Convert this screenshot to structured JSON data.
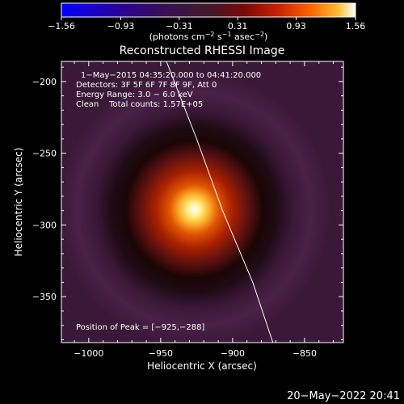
{
  "chart_data": {
    "type": "heatmap",
    "title": "Reconstructed RHESSI Image",
    "xlabel": "Heliocentric X (arcsec)",
    "ylabel": "Heliocentric Y (arcsec)",
    "xlim": [
      -1019,
      -823
    ],
    "ylim": [
      -382,
      -186
    ],
    "xticks": [
      -1000,
      -950,
      -900,
      -850
    ],
    "yticks": [
      -200,
      -250,
      -300,
      -350
    ],
    "xtick_labels": [
      "−1000",
      "−950",
      "−900",
      "−850"
    ],
    "ytick_labels": [
      "−200",
      "−250",
      "−300",
      "−350"
    ],
    "colorbar": {
      "min": -1.56,
      "max": 1.56,
      "ticks": [
        -1.56,
        -0.93,
        -0.31,
        0.31,
        0.93,
        1.56
      ],
      "tick_labels": [
        "−1.56",
        "−0.93",
        "−0.31",
        "0.31",
        "0.93",
        "1.56"
      ],
      "units_text": "(photons cm",
      "units_sup1": "−2",
      "units_mid": " s",
      "units_sup2": "−1",
      "units_mid2": " asec",
      "units_sup3": "−2",
      "units_end": ")"
    },
    "peak": {
      "x": -925,
      "y": -288,
      "value": 1.56
    },
    "limb_curve": [
      [
        -946,
        -186
      ],
      [
        -925,
        -240
      ],
      [
        -907,
        -290
      ],
      [
        -886,
        -340
      ],
      [
        -872,
        -382
      ]
    ],
    "annotations": {
      "time": "1−May−2015 04:35:20.000 to 04:41:20.000",
      "detectors": "Detectors: 3F 5F 6F 7F 8F 9F, Att 0",
      "energy": "Energy Range: 3.0 − 6.0 keV",
      "clean": "Clean    Total counts: 1.57E+05",
      "peak_text": "Position of Peak = [−925,−288]"
    },
    "grid": false
  },
  "footer": {
    "timestamp": "20−May−2022 20:41"
  },
  "colors": {
    "colormap": [
      "#0000ff",
      "#2a00a0",
      "#3a1050",
      "#401a2a",
      "#7a0808",
      "#cc2200",
      "#ff6600",
      "#ffbb33",
      "#ffffff"
    ]
  }
}
